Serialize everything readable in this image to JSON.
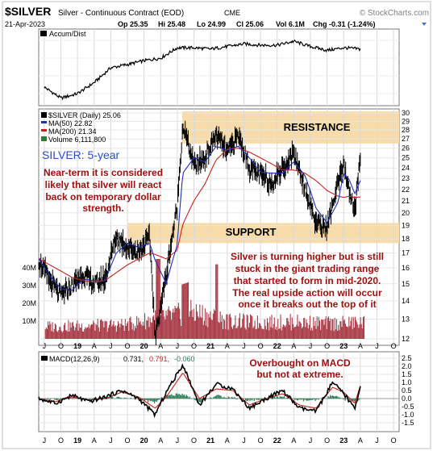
{
  "header": {
    "symbol": "$SILVER",
    "name": "Silver - Continuous Contract (EOD)",
    "exchange": "CME",
    "watermark": "© StockCharts.com",
    "date": "21-Apr-2023",
    "quote": {
      "open": "Op 25.35",
      "high": "Hi 25.48",
      "low": "Lo 24.99",
      "close": "Cl 25.06",
      "volume": "Vol 6.1M",
      "change": "Chg -0.31 (-1.24%)"
    }
  },
  "accum_panel": {
    "label": "Accum/Dist"
  },
  "price_panel": {
    "legend": [
      {
        "text": "$SILVER (Daily) 25.06",
        "color": "#000000"
      },
      {
        "text": "MA(50) 22.82",
        "color": "#1f2fb8"
      },
      {
        "text": "MA(200) 21.34",
        "color": "#c8201e"
      },
      {
        "text": "Volume 6,111,800",
        "color": "#2e7d32"
      }
    ],
    "annotations": {
      "title": "SILVER: 5-year",
      "resistance": "RESISTANCE",
      "support": "SUPPORT",
      "note1": [
        "Near-term it is considered",
        "likely that silver will react",
        "back on temporary dollar",
        "strength."
      ],
      "note2": [
        "Silver is turning higher but is still",
        "stuck in the giant trading range",
        "that started to form in mid-2020.",
        "The real upside action will occur",
        "once it breaks out the top of it"
      ]
    },
    "y_ticks": [
      "12",
      "13",
      "14",
      "15",
      "16",
      "17",
      "18",
      "19",
      "20",
      "21",
      "22",
      "23",
      "24",
      "25",
      "26",
      "27",
      "28",
      "29",
      "30"
    ],
    "volume_ticks": [
      "40M",
      "30M",
      "20M",
      "10M"
    ]
  },
  "macd_panel": {
    "legend": {
      "label": "MACD(12,26,9)",
      "macd": "0.731,",
      "signal": "0.791,",
      "hist": "-0.060"
    },
    "annotation": [
      "Overbought on MACD",
      "but not at extreme."
    ],
    "y_ticks": [
      "2.5",
      "2.0",
      "1.5",
      "1.0",
      "0.5",
      "0.0",
      "-0.5",
      "-1.0",
      "-1.5"
    ]
  },
  "x_axis": {
    "ticks": [
      "J",
      "O",
      "19",
      "A",
      "J",
      "O",
      "20",
      "A",
      "J",
      "O",
      "21",
      "A",
      "J",
      "O",
      "22",
      "A",
      "J",
      "O",
      "23",
      "A",
      "J",
      "O"
    ]
  },
  "colors": {
    "price": "#000000",
    "ma50": "#1f2fb8",
    "ma200": "#c8201e",
    "volume": "#9c1c2a",
    "zone": "#f7dcaa",
    "annotation_red": "#a01010",
    "title_blue": "#2850c8",
    "macd_hist": "#2e7d5a"
  },
  "chart_data": [
    {
      "type": "line",
      "title": "Accum/Dist",
      "x": [
        "2018-07",
        "2018-10",
        "2019-01",
        "2019-04",
        "2019-07",
        "2019-10",
        "2020-01",
        "2020-04",
        "2020-07",
        "2020-10",
        "2021-01",
        "2021-04",
        "2021-07",
        "2021-10",
        "2022-01",
        "2022-04",
        "2022-07",
        "2022-10",
        "2023-01",
        "2023-04"
      ],
      "series": [
        {
          "name": "Accum/Dist",
          "values": [
            0.25,
            0.08,
            0.15,
            0.32,
            0.55,
            0.6,
            0.66,
            0.7,
            0.86,
            0.86,
            0.84,
            0.88,
            0.92,
            0.9,
            0.9,
            0.96,
            0.88,
            0.82,
            0.86,
            0.84
          ]
        }
      ]
    },
    {
      "type": "line",
      "title": "$SILVER (Daily) 25.06",
      "x": [
        "2018-06",
        "2018-08",
        "2018-10",
        "2018-12",
        "2019-02",
        "2019-04",
        "2019-06",
        "2019-08",
        "2019-10",
        "2019-12",
        "2020-02",
        "2020-03",
        "2020-05",
        "2020-07",
        "2020-08",
        "2020-10",
        "2020-12",
        "2021-02",
        "2021-04",
        "2021-06",
        "2021-08",
        "2021-10",
        "2021-12",
        "2022-02",
        "2022-04",
        "2022-06",
        "2022-08",
        "2022-10",
        "2022-12",
        "2023-01",
        "2023-02",
        "2023-03",
        "2023-04"
      ],
      "series": [
        {
          "name": "$SILVER (Daily) 25.06",
          "values": [
            16.5,
            15.2,
            14.3,
            14.9,
            15.6,
            15.0,
            15.3,
            18.2,
            17.4,
            17.1,
            18.1,
            12.0,
            15.5,
            20.5,
            28.5,
            24.2,
            25.0,
            27.5,
            25.5,
            27.4,
            24.0,
            23.3,
            22.6,
            24.0,
            25.5,
            22.2,
            19.2,
            18.8,
            22.5,
            24.2,
            22.0,
            20.0,
            25.06
          ]
        },
        {
          "name": "MA(50) 22.82",
          "values": [
            16.6,
            15.5,
            14.7,
            14.6,
            15.3,
            15.2,
            15.2,
            17.0,
            17.7,
            17.4,
            17.7,
            16.5,
            15.0,
            17.6,
            23.5,
            25.0,
            24.6,
            26.2,
            25.8,
            26.2,
            25.0,
            23.6,
            23.5,
            23.5,
            24.6,
            23.3,
            20.4,
            19.2,
            20.9,
            23.5,
            22.9,
            21.6,
            22.82
          ]
        },
        {
          "name": "MA(200) 21.34",
          "values": [
            16.6,
            16.2,
            15.8,
            15.4,
            15.2,
            15.1,
            15.2,
            15.7,
            16.2,
            16.6,
            17.0,
            16.9,
            16.6,
            17.2,
            19.1,
            21.0,
            22.5,
            24.8,
            25.9,
            26.0,
            25.6,
            25.0,
            24.4,
            23.8,
            23.8,
            23.5,
            22.8,
            21.9,
            21.4,
            21.3,
            21.4,
            21.3,
            21.34
          ]
        }
      ],
      "yscale": "log",
      "ylim": [
        11.5,
        30.5
      ],
      "zones": {
        "resistance": [
          26.5,
          30.2
        ],
        "support": [
          17.7,
          19.2
        ]
      }
    },
    {
      "type": "bar",
      "title": "Volume 6,111,800",
      "x": [
        "2018-H2",
        "2019-H1",
        "2019-H2",
        "2020-H1",
        "2020-H2",
        "2021-H1",
        "2021-H2",
        "2022-H1",
        "2022-H2",
        "2023-H1"
      ],
      "values": [
        7000000,
        7500000,
        8000000,
        12000000,
        15000000,
        10000000,
        9000000,
        9500000,
        8500000,
        9000000
      ],
      "ylim": [
        0,
        50000000
      ]
    },
    {
      "type": "line",
      "title": "MACD(12,26,9)",
      "x": [
        "2018-06",
        "2018-09",
        "2018-12",
        "2019-03",
        "2019-06",
        "2019-09",
        "2019-12",
        "2020-03",
        "2020-05",
        "2020-08",
        "2020-11",
        "2021-02",
        "2021-05",
        "2021-08",
        "2021-11",
        "2022-02",
        "2022-05",
        "2022-08",
        "2022-11",
        "2023-01",
        "2023-03",
        "2023-04"
      ],
      "series": [
        {
          "name": "MACD",
          "values": [
            0.0,
            -0.3,
            0.2,
            -0.2,
            0.1,
            0.5,
            0.0,
            -1.0,
            0.4,
            2.1,
            -0.4,
            0.9,
            0.6,
            -0.6,
            0.0,
            0.5,
            -0.6,
            -0.8,
            1.0,
            0.3,
            -0.6,
            0.73
          ]
        },
        {
          "name": "Signal",
          "values": [
            0.0,
            -0.2,
            0.1,
            -0.1,
            0.0,
            0.4,
            0.1,
            -0.6,
            0.1,
            1.6,
            0.0,
            0.6,
            0.5,
            -0.4,
            0.0,
            0.3,
            -0.4,
            -0.6,
            0.7,
            0.4,
            -0.3,
            0.79
          ]
        }
      ],
      "ylim": [
        -1.8,
        2.7
      ]
    }
  ]
}
